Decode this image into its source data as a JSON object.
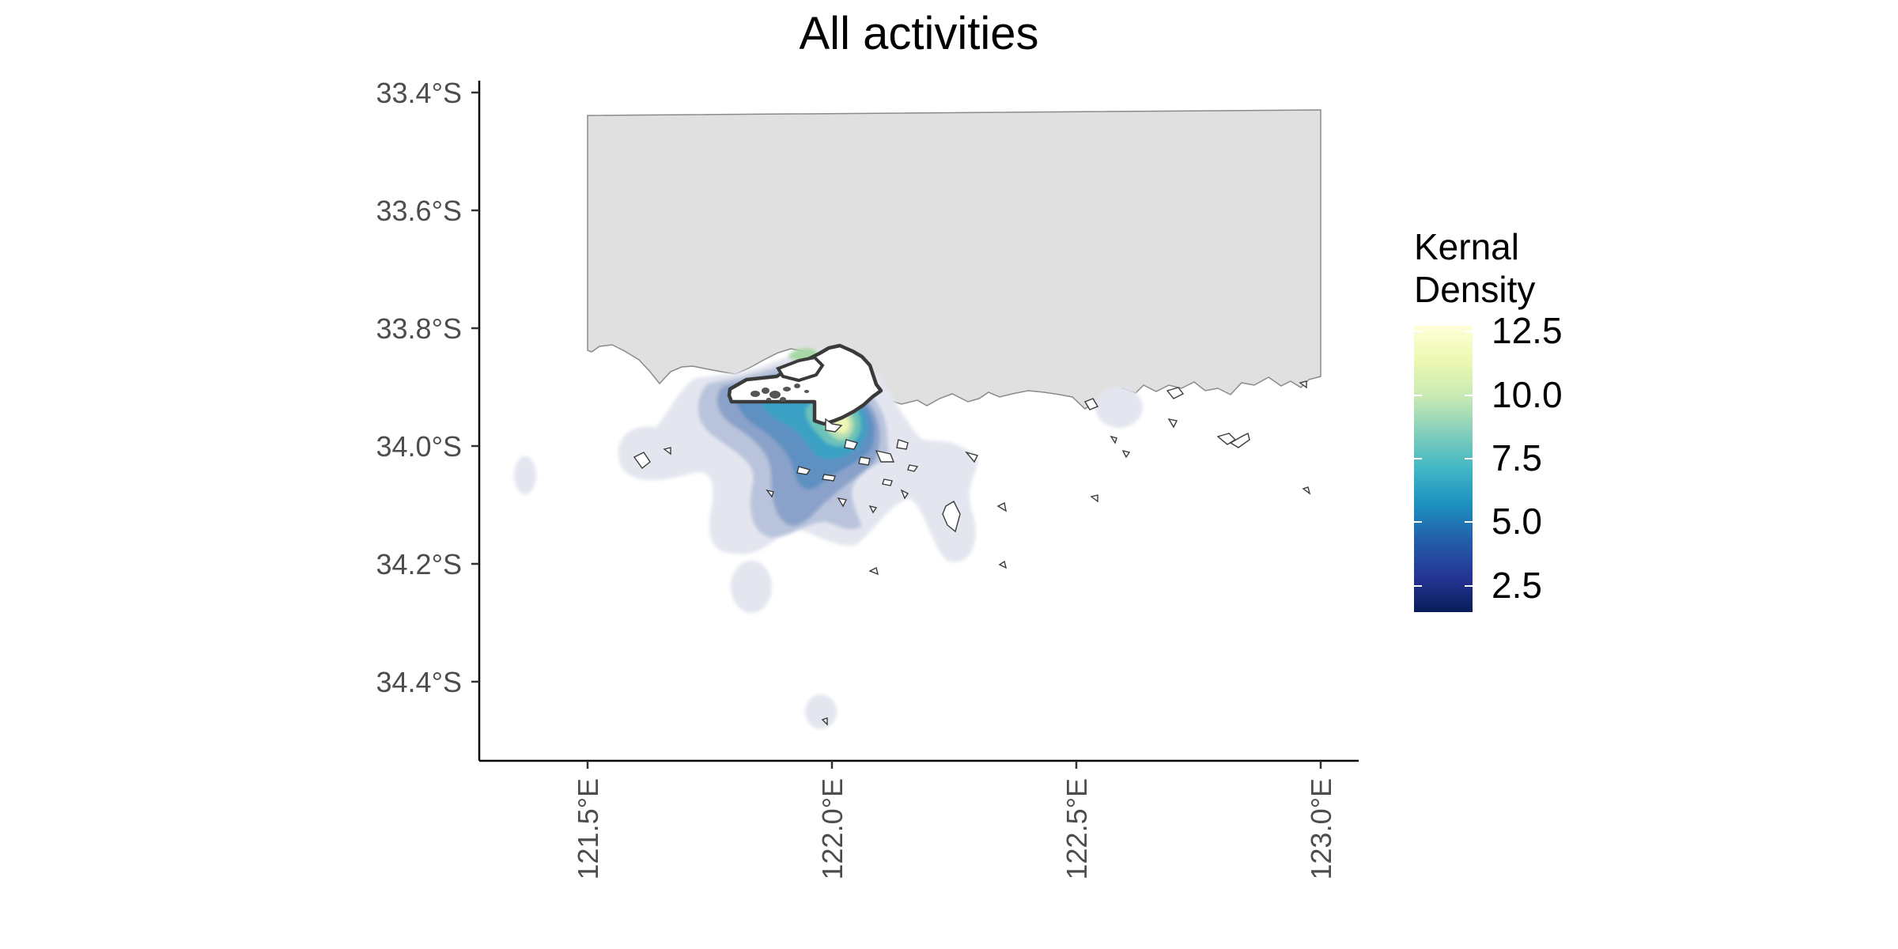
{
  "title": "All activities",
  "map": {
    "y_ticks": [
      {
        "label": "33.4°S",
        "lat": -33.4
      },
      {
        "label": "33.6°S",
        "lat": -33.6
      },
      {
        "label": "33.8°S",
        "lat": -33.8
      },
      {
        "label": "34.0°S",
        "lat": -34.0
      },
      {
        "label": "34.2°S",
        "lat": -34.2
      },
      {
        "label": "34.4°S",
        "lat": -34.4
      }
    ],
    "x_ticks": [
      {
        "label": "121.5°E",
        "lon": 121.5
      },
      {
        "label": "122.0°E",
        "lon": 122.0
      },
      {
        "label": "122.5°E",
        "lon": 122.5
      },
      {
        "label": "123.0°E",
        "lon": 123.0
      }
    ],
    "x_range": [
      121.28,
      123.08
    ],
    "y_range": [
      -34.53,
      -33.38
    ],
    "land_color": "#e0e0e0",
    "outline_color": "#3a3a3a"
  },
  "legend": {
    "title_line1": "Kernal",
    "title_line2": "Density",
    "labels": [
      "12.5",
      "10.0",
      "7.5",
      "5.0",
      "2.5"
    ],
    "scale_min": 1.4,
    "scale_max": 13.1,
    "colors": [
      "#081d58",
      "#253494",
      "#225ea8",
      "#1d91c0",
      "#41b6c4",
      "#7fcdbb",
      "#c7e9b4",
      "#edf8b1",
      "#ffffd9"
    ]
  },
  "density_levels": [
    {
      "level": 1.5,
      "color": "#e3e6ef"
    },
    {
      "level": 2.5,
      "color": "#b9c4dc"
    },
    {
      "level": 3.5,
      "color": "#8aa2c9"
    },
    {
      "level": 5.0,
      "color": "#5f90c2"
    },
    {
      "level": 6.5,
      "color": "#3aa1c4"
    },
    {
      "level": 8.0,
      "color": "#6cc2b8"
    },
    {
      "level": 10.0,
      "color": "#b5dfb3"
    },
    {
      "level": 12.0,
      "color": "#eef6b6"
    }
  ]
}
